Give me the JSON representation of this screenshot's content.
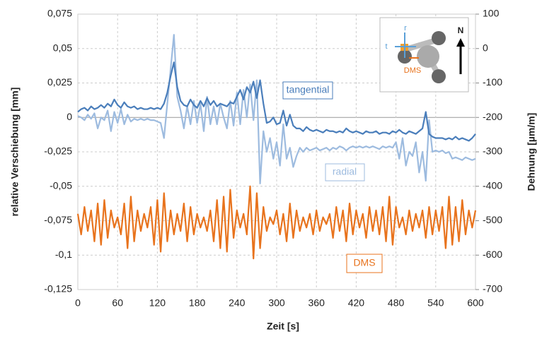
{
  "chart_data": {
    "type": "line",
    "xlabel": "Zeit [s]",
    "ylabel": "relative Verschiebung [mm]",
    "y2label": "Dehnung [µm/m]",
    "xlim": [
      0,
      600
    ],
    "xticks": [
      0,
      60,
      120,
      180,
      240,
      300,
      360,
      420,
      480,
      540,
      600
    ],
    "ylim": [
      -0.125,
      0.075
    ],
    "yticks": [
      {
        "value": 0.075,
        "label": "0,075"
      },
      {
        "value": 0.05,
        "label": "0,05"
      },
      {
        "value": 0.025,
        "label": "0,025"
      },
      0,
      {
        "value": -0.025,
        "label": "-0,025"
      },
      {
        "value": -0.05,
        "label": "-0,05"
      },
      {
        "value": -0.075,
        "label": "-0,075"
      },
      {
        "value": -0.1,
        "label": "-0,1"
      },
      {
        "value": -0.125,
        "label": "-0,125"
      }
    ],
    "y2lim": [
      -700,
      100
    ],
    "y2ticks": [
      100,
      0,
      -100,
      -200,
      -300,
      -400,
      -500,
      -600,
      -700
    ],
    "grid": true,
    "x": [
      0,
      5,
      10,
      15,
      20,
      25,
      30,
      35,
      40,
      45,
      50,
      55,
      60,
      65,
      70,
      75,
      80,
      85,
      90,
      95,
      100,
      105,
      110,
      115,
      120,
      125,
      130,
      135,
      140,
      145,
      150,
      155,
      160,
      165,
      170,
      175,
      180,
      185,
      190,
      195,
      200,
      205,
      210,
      215,
      220,
      225,
      230,
      235,
      240,
      245,
      250,
      255,
      260,
      265,
      270,
      275,
      280,
      285,
      290,
      295,
      300,
      305,
      310,
      315,
      320,
      325,
      330,
      335,
      340,
      345,
      350,
      355,
      360,
      365,
      370,
      375,
      380,
      385,
      390,
      395,
      400,
      405,
      410,
      415,
      420,
      425,
      430,
      435,
      440,
      445,
      450,
      455,
      460,
      465,
      470,
      475,
      480,
      485,
      490,
      495,
      500,
      505,
      510,
      515,
      520,
      525,
      530,
      535,
      540,
      545,
      550,
      555,
      560,
      565,
      570,
      575,
      580,
      585,
      590,
      595,
      600
    ],
    "series": [
      {
        "name": "radial",
        "color": "#9dbbdf",
        "values": [
          0.001,
          0.0,
          -0.002,
          0.002,
          -0.001,
          0.003,
          -0.008,
          0.0,
          -0.002,
          0.005,
          -0.01,
          0.004,
          -0.004,
          0.006,
          -0.005,
          0.002,
          -0.003,
          -0.001,
          -0.002,
          -0.001,
          -0.002,
          -0.001,
          -0.002,
          -0.002,
          -0.003,
          -0.004,
          -0.015,
          0.01,
          0.035,
          0.06,
          0.015,
          0.005,
          -0.008,
          0.008,
          -0.005,
          0.012,
          -0.004,
          0.01,
          -0.01,
          0.015,
          -0.005,
          0.008,
          -0.005,
          0.01,
          0.0,
          -0.008,
          0.012,
          -0.006,
          0.018,
          -0.005,
          0.02,
          0.0,
          0.024,
          -0.002,
          0.027,
          -0.048,
          -0.01,
          -0.025,
          -0.015,
          -0.03,
          -0.018,
          -0.035,
          -0.005,
          -0.03,
          -0.022,
          -0.036,
          -0.028,
          -0.022,
          -0.025,
          -0.022,
          -0.024,
          -0.023,
          -0.022,
          -0.024,
          -0.023,
          -0.022,
          -0.024,
          -0.022,
          -0.023,
          -0.021,
          -0.022,
          -0.024,
          -0.022,
          -0.021,
          -0.022,
          -0.021,
          -0.022,
          -0.021,
          -0.022,
          -0.021,
          -0.022,
          -0.023,
          -0.021,
          -0.022,
          -0.021,
          -0.022,
          -0.018,
          -0.03,
          -0.015,
          -0.035,
          -0.025,
          -0.028,
          -0.018,
          -0.04,
          -0.025,
          -0.046,
          -0.002,
          -0.025,
          -0.024,
          -0.025,
          -0.024,
          -0.026,
          -0.025,
          -0.03,
          -0.029,
          -0.03,
          -0.031,
          -0.029,
          -0.03,
          -0.031,
          -0.03
        ]
      },
      {
        "name": "tangential",
        "color": "#4a7ebb",
        "values": [
          0.004,
          0.006,
          0.007,
          0.005,
          0.008,
          0.006,
          0.007,
          0.009,
          0.007,
          0.01,
          0.008,
          0.013,
          0.009,
          0.007,
          0.011,
          0.008,
          0.007,
          0.008,
          0.006,
          0.007,
          0.006,
          0.006,
          0.007,
          0.006,
          0.007,
          0.006,
          0.01,
          0.018,
          0.03,
          0.04,
          0.022,
          0.012,
          0.009,
          0.008,
          0.013,
          0.009,
          0.007,
          0.012,
          0.008,
          0.014,
          0.009,
          0.012,
          0.008,
          0.01,
          0.009,
          0.008,
          0.011,
          0.01,
          0.015,
          0.02,
          0.013,
          0.022,
          0.018,
          0.026,
          0.014,
          0.027,
          0.01,
          -0.004,
          -0.003,
          0.0,
          -0.005,
          -0.004,
          0.005,
          -0.006,
          0.002,
          -0.006,
          -0.008,
          -0.008,
          -0.01,
          -0.007,
          -0.009,
          -0.01,
          -0.009,
          -0.01,
          -0.011,
          -0.009,
          -0.01,
          -0.01,
          -0.011,
          -0.01,
          -0.011,
          -0.008,
          -0.01,
          -0.011,
          -0.01,
          -0.011,
          -0.012,
          -0.01,
          -0.011,
          -0.011,
          -0.01,
          -0.012,
          -0.011,
          -0.011,
          -0.012,
          -0.01,
          -0.011,
          -0.009,
          -0.011,
          -0.012,
          -0.01,
          -0.011,
          -0.012,
          -0.01,
          -0.008,
          0.004,
          -0.012,
          -0.014,
          -0.015,
          -0.015,
          -0.015,
          -0.016,
          -0.015,
          -0.016,
          -0.014,
          -0.016,
          -0.015,
          -0.016,
          -0.017,
          -0.015,
          -0.012
        ]
      },
      {
        "name": "DMS",
        "color": "#e8731d",
        "axis": "y2",
        "values": [
          -480,
          -540,
          -460,
          -530,
          -470,
          -560,
          -450,
          -570,
          -440,
          -550,
          -470,
          -520,
          -490,
          -540,
          -450,
          -580,
          -430,
          -560,
          -470,
          -530,
          -480,
          -520,
          -460,
          -570,
          -440,
          -590,
          -420,
          -560,
          -470,
          -540,
          -480,
          -530,
          -450,
          -560,
          -460,
          -540,
          -480,
          -520,
          -490,
          -530,
          -470,
          -560,
          -440,
          -580,
          -430,
          -590,
          -410,
          -550,
          -470,
          -520,
          -480,
          -540,
          -400,
          -610,
          -420,
          -580,
          -460,
          -530,
          -490,
          -510,
          -470,
          -540,
          -480,
          -560,
          -450,
          -550,
          -470,
          -530,
          -490,
          -520,
          -480,
          -540,
          -470,
          -530,
          -490,
          -510,
          -480,
          -550,
          -460,
          -530,
          -470,
          -560,
          -450,
          -540,
          -470,
          -520,
          -480,
          -550,
          -460,
          -530,
          -470,
          -540,
          -460,
          -560,
          -430,
          -570,
          -460,
          -520,
          -490,
          -540,
          -470,
          -530,
          -480,
          -520,
          -470,
          -550,
          -460,
          -540,
          -470,
          -530,
          -460,
          -580,
          -430,
          -570,
          -460,
          -560,
          -440,
          -540,
          -470,
          -520,
          -470
        ]
      }
    ],
    "inset_labels": [
      "r",
      "t",
      "DMS",
      "N"
    ]
  }
}
